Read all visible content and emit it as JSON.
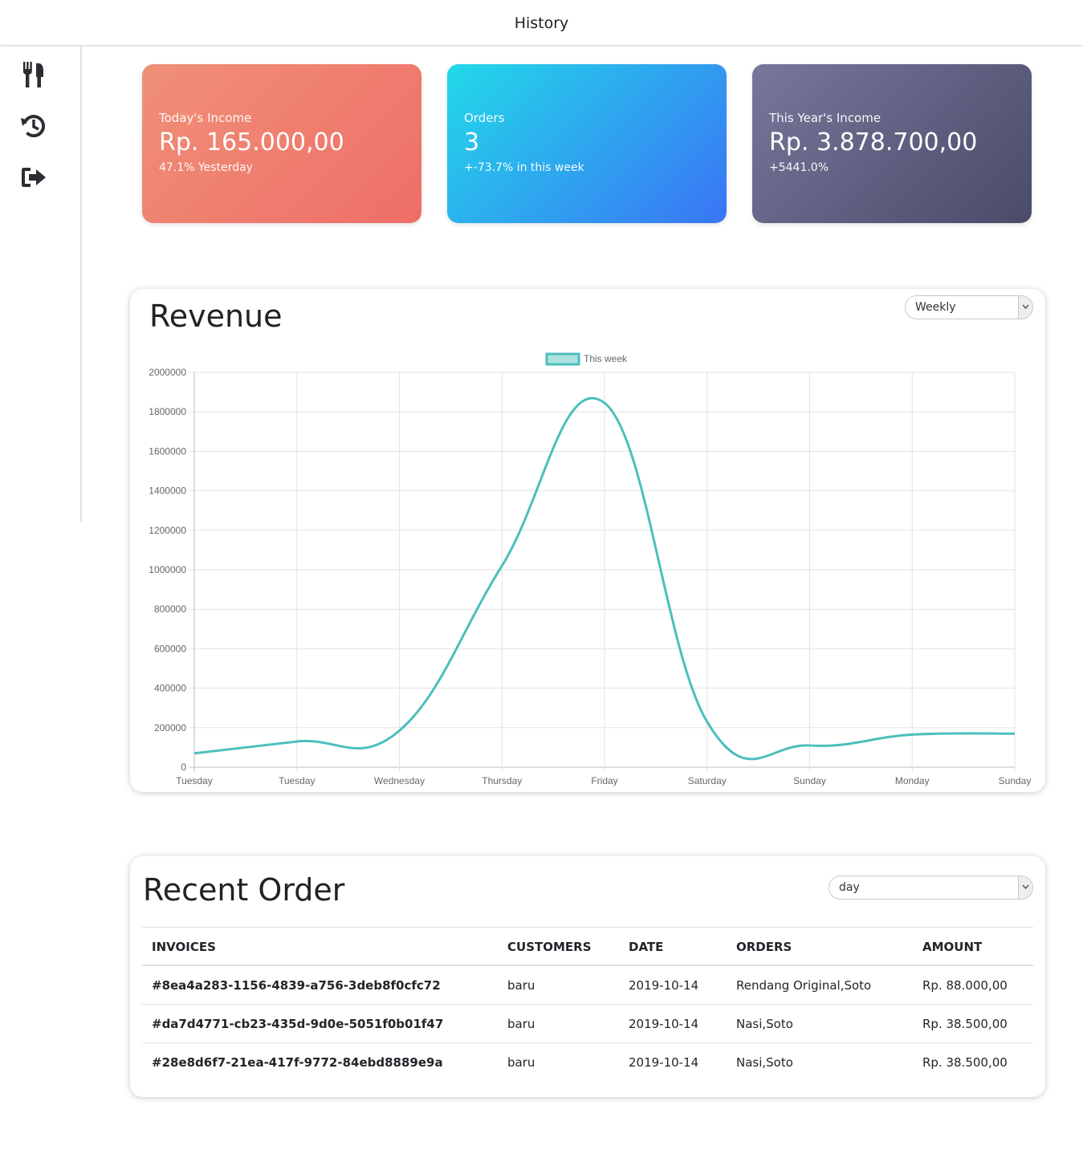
{
  "header": {
    "title": "History"
  },
  "sidebar": {
    "items": [
      {
        "name": "menu",
        "icon": "fork-knife-icon"
      },
      {
        "name": "history",
        "icon": "history-icon"
      },
      {
        "name": "logout",
        "icon": "sign-out-icon"
      }
    ]
  },
  "cards": [
    {
      "label": "Today's Income",
      "value": "Rp. 165.000,00",
      "sub": "47.1% Yesterday"
    },
    {
      "label": "Orders",
      "value": "3",
      "sub": "+-73.7% in this week"
    },
    {
      "label": "This Year's Income",
      "value": "Rp. 3.878.700,00",
      "sub": "+5441.0%"
    }
  ],
  "revenue": {
    "title": "Revenue",
    "period": "Weekly"
  },
  "chart_data": {
    "type": "line",
    "title": "",
    "xlabel": "",
    "ylabel": "",
    "categories": [
      "Tuesday",
      "Tuesday",
      "Wednesday",
      "Thursday",
      "Friday",
      "Saturday",
      "Sunday",
      "Monday",
      "Sunday"
    ],
    "series": [
      {
        "name": "This week",
        "color": "#4bbfbd",
        "values": [
          70000,
          130000,
          185000,
          1020000,
          1845000,
          230000,
          110000,
          165000,
          170000
        ]
      }
    ],
    "ylim": [
      0,
      2000000
    ],
    "yticks": [
      "0",
      "200000",
      "400000",
      "600000",
      "800000",
      "1000000",
      "1200000",
      "1400000",
      "1600000",
      "1800000",
      "2000000"
    ],
    "grid": true,
    "legend": "top"
  },
  "recent": {
    "title": "Recent Order",
    "filter": "day",
    "columns": [
      "INVOICES",
      "CUSTOMERS",
      "DATE",
      "ORDERS",
      "AMOUNT"
    ],
    "rows": [
      {
        "invoice": "#8ea4a283-1156-4839-a756-3deb8f0cfc72",
        "customer": "baru",
        "date": "2019-10-14",
        "orders": "Rendang Original,Soto",
        "amount": "Rp. 88.000,00"
      },
      {
        "invoice": "#da7d4771-cb23-435d-9d0e-5051f0b01f47",
        "customer": "baru",
        "date": "2019-10-14",
        "orders": "Nasi,Soto",
        "amount": "Rp. 38.500,00"
      },
      {
        "invoice": "#28e8d6f7-21ea-417f-9772-84ebd8889e9a",
        "customer": "baru",
        "date": "2019-10-14",
        "orders": "Nasi,Soto",
        "amount": "Rp. 38.500,00"
      }
    ]
  }
}
